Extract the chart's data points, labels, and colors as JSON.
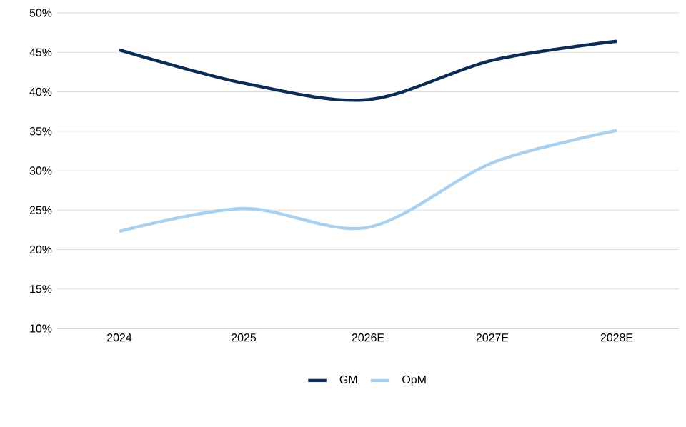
{
  "chart_data": {
    "type": "line",
    "categories": [
      "2024",
      "2025",
      "2026E",
      "2027E",
      "2028E"
    ],
    "series": [
      {
        "name": "GM",
        "color": "#0b2d55",
        "values": [
          45.3,
          41.1,
          39.0,
          44.0,
          46.4
        ]
      },
      {
        "name": "OpM",
        "color": "#a9d1ef",
        "values": [
          22.3,
          25.2,
          22.8,
          31.0,
          35.1
        ]
      }
    ],
    "ylim": [
      10,
      50
    ],
    "yticks": [
      {
        "value": 10,
        "label": "10%"
      },
      {
        "value": 15,
        "label": "15%"
      },
      {
        "value": 20,
        "label": "20%"
      },
      {
        "value": 25,
        "label": "25%"
      },
      {
        "value": 30,
        "label": "30%"
      },
      {
        "value": 35,
        "label": "35%"
      },
      {
        "value": 40,
        "label": "40%"
      },
      {
        "value": 45,
        "label": "45%"
      },
      {
        "value": 50,
        "label": "50%"
      }
    ],
    "grid": "y",
    "legend": "bottom",
    "marker": "none",
    "line_style": "solid"
  }
}
